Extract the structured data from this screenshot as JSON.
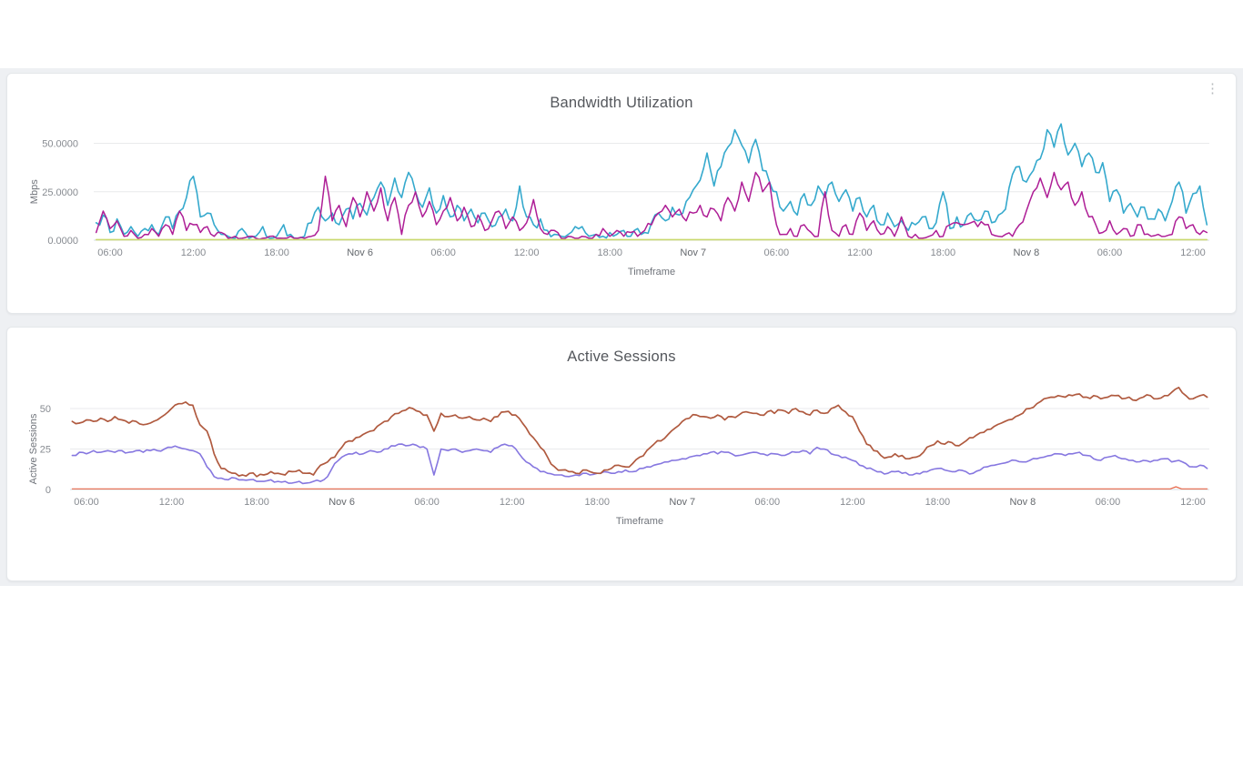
{
  "page": {
    "background": "#ffffff",
    "panel_background": "#eef0f3"
  },
  "icons": {
    "kebab_menu": "⋮"
  },
  "cards": [
    {
      "title": "Bandwidth Utilization",
      "has_menu": true
    },
    {
      "title": "Active Sessions",
      "has_menu": false
    }
  ],
  "chart_data": [
    {
      "type": "line",
      "title": "Bandwidth Utilization",
      "xlabel": "Timeframe",
      "ylabel": "Mbps",
      "ylim": [
        0,
        62
      ],
      "grid": true,
      "legend": "none",
      "x_hours_start": 5,
      "x_hours_end": 85,
      "yticks": [
        {
          "v": 0,
          "label": "0.0000"
        },
        {
          "v": 25,
          "label": "25.0000"
        },
        {
          "v": 50,
          "label": "50.0000"
        }
      ],
      "xticks": [
        {
          "t": 6,
          "label": "06:00"
        },
        {
          "t": 12,
          "label": "12:00"
        },
        {
          "t": 18,
          "label": "18:00"
        },
        {
          "t": 24,
          "label": "Nov 6",
          "day": true
        },
        {
          "t": 30,
          "label": "06:00"
        },
        {
          "t": 36,
          "label": "12:00"
        },
        {
          "t": 42,
          "label": "18:00"
        },
        {
          "t": 48,
          "label": "Nov 7",
          "day": true
        },
        {
          "t": 54,
          "label": "06:00"
        },
        {
          "t": 60,
          "label": "12:00"
        },
        {
          "t": 66,
          "label": "18:00"
        },
        {
          "t": 72,
          "label": "Nov 8",
          "day": true
        },
        {
          "t": 78,
          "label": "06:00"
        },
        {
          "t": 84,
          "label": "12:00"
        }
      ],
      "series": [
        {
          "name": "bandwidth-in",
          "color": "#35a9cd",
          "width": 1.6,
          "jitter": 3.2,
          "taper": 5,
          "t0": 5,
          "dt": 0.5,
          "values": [
            9,
            13,
            4,
            11,
            3,
            7,
            2,
            6,
            8,
            3,
            12,
            6,
            15,
            22,
            33,
            12,
            14,
            8,
            3,
            2,
            1,
            6,
            1,
            2,
            7,
            1,
            2,
            8,
            3,
            1,
            2,
            9,
            17,
            10,
            14,
            8,
            16,
            11,
            19,
            13,
            22,
            30,
            18,
            32,
            22,
            35,
            25,
            17,
            27,
            14,
            23,
            12,
            18,
            10,
            16,
            9,
            14,
            7,
            12,
            16,
            10,
            28,
            12,
            8,
            11,
            5,
            3,
            2,
            3,
            7,
            7,
            2,
            3,
            2,
            4,
            3,
            5,
            2,
            6,
            4,
            9,
            14,
            10,
            17,
            13,
            20,
            26,
            31,
            45,
            28,
            38,
            48,
            57,
            49,
            40,
            52,
            36,
            30,
            25,
            15,
            20,
            13,
            24,
            18,
            28,
            22,
            30,
            20,
            26,
            15,
            22,
            12,
            18,
            8,
            14,
            7,
            10,
            5,
            8,
            12,
            6,
            9,
            25,
            6,
            12,
            8,
            14,
            10,
            15,
            9,
            13,
            16,
            34,
            38,
            30,
            36,
            42,
            57,
            48,
            60,
            44,
            50,
            38,
            45,
            35,
            40,
            20,
            26,
            14,
            19,
            12,
            17,
            11,
            16,
            10,
            20,
            30,
            14,
            24,
            28,
            8
          ]
        },
        {
          "name": "bandwidth-out",
          "color": "#ae1e96",
          "width": 1.5,
          "jitter": 2.6,
          "taper": 5,
          "t0": 5,
          "dt": 0.5,
          "values": [
            4,
            15,
            6,
            10,
            2,
            5,
            1,
            3,
            6,
            2,
            8,
            3,
            15,
            5,
            8,
            4,
            7,
            2,
            4,
            1,
            2,
            1,
            2,
            1,
            1,
            2,
            1,
            1,
            2,
            1,
            1,
            2,
            5,
            33,
            10,
            18,
            7,
            22,
            12,
            25,
            15,
            27,
            10,
            22,
            3,
            18,
            25,
            12,
            20,
            8,
            15,
            22,
            10,
            17,
            7,
            13,
            5,
            10,
            15,
            6,
            12,
            5,
            9,
            21,
            6,
            3,
            5,
            1,
            2,
            1,
            2,
            1,
            3,
            6,
            2,
            5,
            2,
            4,
            2,
            5,
            8,
            14,
            18,
            12,
            16,
            10,
            14,
            18,
            12,
            16,
            10,
            22,
            15,
            30,
            20,
            35,
            25,
            30,
            8,
            3,
            6,
            2,
            8,
            4,
            2,
            25,
            5,
            2,
            8,
            3,
            14,
            5,
            10,
            3,
            7,
            2,
            12,
            2,
            3,
            1,
            2,
            5,
            2,
            8,
            9,
            8,
            9,
            7,
            8,
            3,
            2,
            3,
            2,
            8,
            15,
            25,
            32,
            22,
            35,
            26,
            30,
            18,
            25,
            12,
            8,
            4,
            10,
            3,
            6,
            2,
            8,
            3,
            2,
            3,
            2,
            3,
            12,
            6,
            8,
            3,
            4
          ]
        },
        {
          "name": "bandwidth-baseline",
          "color": "#c9d96e",
          "width": 1.6,
          "jitter": 0,
          "points": [
            [
              5,
              0.3
            ],
            [
              85,
              0.3
            ]
          ]
        }
      ]
    },
    {
      "type": "line",
      "title": "Active Sessions",
      "xlabel": "Timeframe",
      "ylabel": "Active Sessions",
      "ylim": [
        0,
        68
      ],
      "grid": true,
      "legend": "none",
      "x_hours_start": 5,
      "x_hours_end": 85,
      "yticks": [
        {
          "v": 0,
          "label": "0"
        },
        {
          "v": 25,
          "label": "25"
        },
        {
          "v": 50,
          "label": "50"
        }
      ],
      "xticks": [
        {
          "t": 6,
          "label": "06:00"
        },
        {
          "t": 12,
          "label": "12:00"
        },
        {
          "t": 18,
          "label": "18:00"
        },
        {
          "t": 24,
          "label": "Nov 6",
          "day": true
        },
        {
          "t": 30,
          "label": "06:00"
        },
        {
          "t": 36,
          "label": "12:00"
        },
        {
          "t": 42,
          "label": "18:00"
        },
        {
          "t": 48,
          "label": "Nov 7",
          "day": true
        },
        {
          "t": 54,
          "label": "06:00"
        },
        {
          "t": 60,
          "label": "12:00"
        },
        {
          "t": 66,
          "label": "18:00"
        },
        {
          "t": 72,
          "label": "Nov 8",
          "day": true
        },
        {
          "t": 78,
          "label": "06:00"
        },
        {
          "t": 84,
          "label": "12:00"
        }
      ],
      "series": [
        {
          "name": "sessions-secondary",
          "color": "#8677e0",
          "width": 1.6,
          "jitter": 1.0,
          "taper": 0,
          "t0": 5,
          "dt": 0.5,
          "values": [
            21,
            23,
            22,
            24,
            23,
            24,
            23,
            24,
            23,
            24,
            23,
            24,
            24,
            25,
            26,
            26,
            25,
            24,
            22,
            14,
            8,
            7,
            6,
            7,
            6,
            6,
            5,
            5,
            6,
            5,
            5,
            4,
            5,
            4,
            5,
            5,
            8,
            16,
            20,
            22,
            23,
            22,
            24,
            23,
            25,
            27,
            28,
            27,
            28,
            26,
            25,
            9,
            25,
            24,
            25,
            23,
            24,
            25,
            24,
            23,
            26,
            28,
            27,
            22,
            17,
            14,
            11,
            10,
            9,
            9,
            8,
            9,
            10,
            9,
            10,
            11,
            10,
            11,
            12,
            11,
            13,
            14,
            15,
            16,
            17,
            18,
            19,
            20,
            21,
            22,
            23,
            22,
            23,
            22,
            21,
            22,
            23,
            22,
            21,
            22,
            21,
            22,
            23,
            24,
            22,
            26,
            25,
            22,
            21,
            20,
            18,
            15,
            13,
            12,
            11,
            10,
            11,
            10,
            9,
            10,
            11,
            12,
            13,
            12,
            11,
            12,
            11,
            10,
            12,
            14,
            15,
            16,
            17,
            18,
            17,
            18,
            19,
            20,
            21,
            22,
            21,
            22,
            23,
            21,
            19,
            18,
            20,
            21,
            19,
            18,
            17,
            18,
            17,
            18,
            19,
            17,
            18,
            16,
            14,
            15,
            13
          ]
        },
        {
          "name": "sessions-primary",
          "color": "#b05a3f",
          "width": 1.7,
          "jitter": 1.3,
          "taper": 0,
          "t0": 5,
          "dt": 0.5,
          "values": [
            42,
            41,
            43,
            42,
            44,
            42,
            45,
            43,
            41,
            42,
            40,
            41,
            43,
            46,
            50,
            53,
            54,
            52,
            40,
            36,
            22,
            13,
            11,
            10,
            9,
            10,
            8,
            9,
            11,
            10,
            9,
            11,
            12,
            10,
            9,
            15,
            17,
            20,
            26,
            30,
            32,
            34,
            36,
            39,
            42,
            45,
            47,
            49,
            50,
            48,
            46,
            36,
            47,
            45,
            46,
            44,
            45,
            43,
            44,
            42,
            45,
            48,
            46,
            44,
            38,
            32,
            26,
            20,
            14,
            12,
            11,
            10,
            12,
            11,
            10,
            12,
            13,
            15,
            14,
            16,
            20,
            24,
            28,
            30,
            34,
            38,
            42,
            44,
            46,
            45,
            44,
            46,
            43,
            45,
            46,
            48,
            47,
            46,
            48,
            47,
            49,
            47,
            50,
            48,
            46,
            49,
            47,
            50,
            52,
            48,
            45,
            36,
            28,
            24,
            21,
            20,
            22,
            21,
            19,
            20,
            23,
            27,
            30,
            28,
            29,
            27,
            30,
            32,
            35,
            37,
            39,
            41,
            43,
            45,
            47,
            50,
            53,
            56,
            57,
            58,
            57,
            58,
            59,
            57,
            58,
            56,
            57,
            58,
            56,
            57,
            55,
            57,
            58,
            56,
            58,
            60,
            63,
            58,
            56,
            58,
            57
          ]
        },
        {
          "name": "sessions-baseline",
          "color": "#e8684a",
          "width": 1.2,
          "jitter": 0,
          "points": [
            [
              5,
              0.4
            ],
            [
              82.4,
              0.4
            ],
            [
              82.8,
              1.7
            ],
            [
              83.2,
              0.4
            ],
            [
              85,
              0.4
            ]
          ]
        }
      ]
    }
  ]
}
